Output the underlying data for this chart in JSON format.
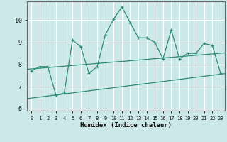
{
  "title": "",
  "xlabel": "Humidex (Indice chaleur)",
  "x_values": [
    0,
    1,
    2,
    3,
    4,
    5,
    6,
    7,
    8,
    9,
    10,
    11,
    12,
    13,
    14,
    15,
    16,
    17,
    18,
    19,
    20,
    21,
    22,
    23
  ],
  "main_y": [
    7.7,
    7.9,
    7.9,
    6.6,
    6.7,
    9.1,
    8.8,
    7.6,
    7.9,
    9.35,
    10.05,
    10.6,
    9.9,
    9.2,
    9.2,
    9.0,
    8.25,
    9.55,
    8.25,
    8.5,
    8.5,
    8.95,
    8.85,
    7.6
  ],
  "line_color": "#2e8b74",
  "background_color": "#cce8e8",
  "grid_color": "#ffffff",
  "ylim": [
    5.9,
    10.85
  ],
  "xlim": [
    -0.5,
    23.5
  ],
  "yticks": [
    6,
    7,
    8,
    9,
    10
  ],
  "xticks": [
    0,
    1,
    2,
    3,
    4,
    5,
    6,
    7,
    8,
    9,
    10,
    11,
    12,
    13,
    14,
    15,
    16,
    17,
    18,
    19,
    20,
    21,
    22,
    23
  ],
  "trend_upper_start": 7.78,
  "trend_upper_end": 8.52,
  "trend_lower_start": 6.45,
  "trend_lower_end": 7.58
}
